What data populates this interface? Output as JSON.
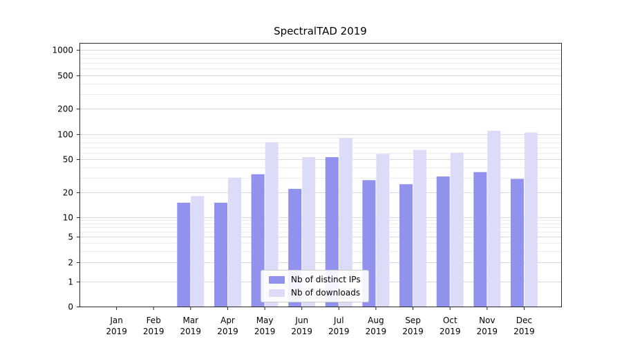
{
  "chart_data": {
    "type": "bar",
    "title": "SpectralTAD 2019",
    "categories": [
      "Jan",
      "Feb",
      "Mar",
      "Apr",
      "May",
      "Jun",
      "Jul",
      "Aug",
      "Sep",
      "Oct",
      "Nov",
      "Dec"
    ],
    "xtick_year": "2019",
    "series": [
      {
        "name": "Nb of distinct IPs",
        "color": "#9191ee",
        "values": [
          0,
          0,
          15,
          15,
          33,
          22,
          53,
          28,
          25,
          31,
          35,
          29
        ]
      },
      {
        "name": "Nb of downloads",
        "color": "#dcdcf8",
        "values": [
          0,
          0,
          18,
          30,
          80,
          53,
          90,
          58,
          65,
          60,
          110,
          105
        ]
      }
    ],
    "yticks": [
      0,
      1,
      2,
      5,
      10,
      20,
      50,
      100,
      200,
      500,
      1000
    ],
    "yscale": "log",
    "ylim": [
      0,
      1000
    ],
    "grid": true,
    "grid_color_major": "#d9d9d9",
    "grid_color_minor": "#ededed",
    "legend_position": "lower center"
  }
}
